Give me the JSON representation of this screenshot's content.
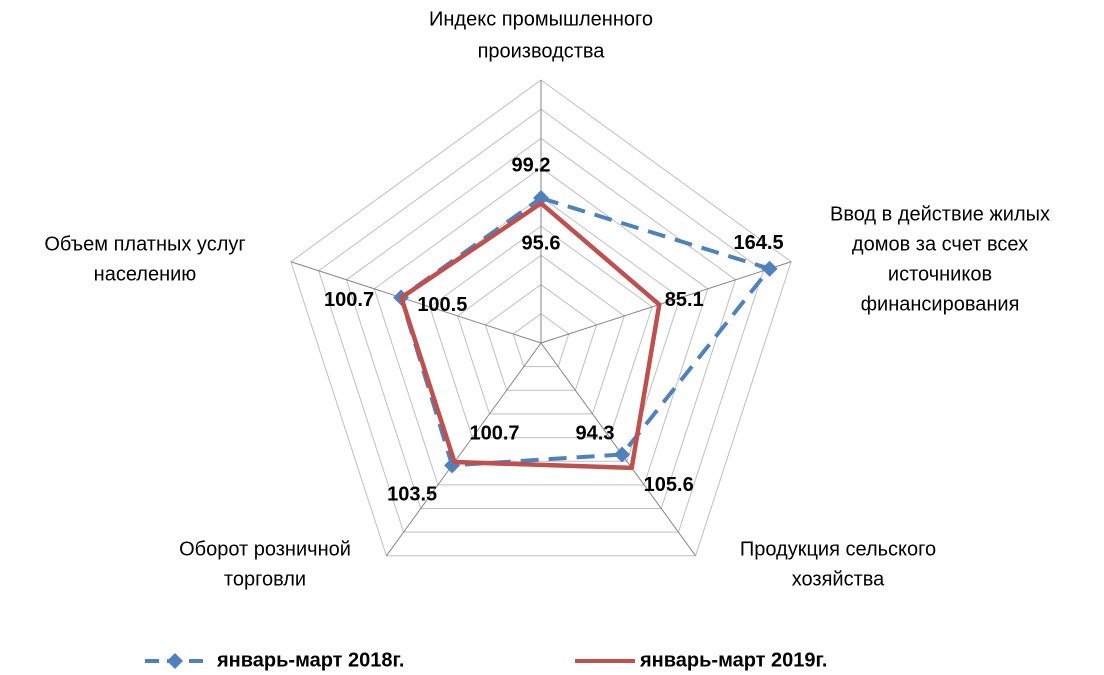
{
  "chart_data": {
    "type": "radar",
    "categories": [
      [
        "Индекс промышленного",
        "производства"
      ],
      [
        "Ввод в действие жилых",
        "домов за счет всех",
        "источников",
        "финансирования"
      ],
      [
        "Продукция сельского",
        "хозяйства"
      ],
      [
        "Оборот розничной",
        "торговли"
      ],
      [
        "Объем платных услуг",
        "населению"
      ]
    ],
    "series": [
      {
        "name": "январь-март 2018г.",
        "color": "#4f81bd",
        "style": "dashed",
        "marker": "diamond",
        "values": [
          99.2,
          164.5,
          94.3,
          103.5,
          100.7
        ]
      },
      {
        "name": "январь-март 2019г.",
        "color": "#c0504d",
        "style": "solid",
        "marker": "none",
        "values": [
          95.6,
          85.1,
          105.6,
          100.7,
          100.5
        ]
      }
    ],
    "rlim": [
      0,
      180
    ],
    "rticks": [
      0,
      20,
      40,
      60,
      80,
      100,
      120,
      140,
      160,
      180
    ],
    "grid": true,
    "legend": "bottom"
  }
}
